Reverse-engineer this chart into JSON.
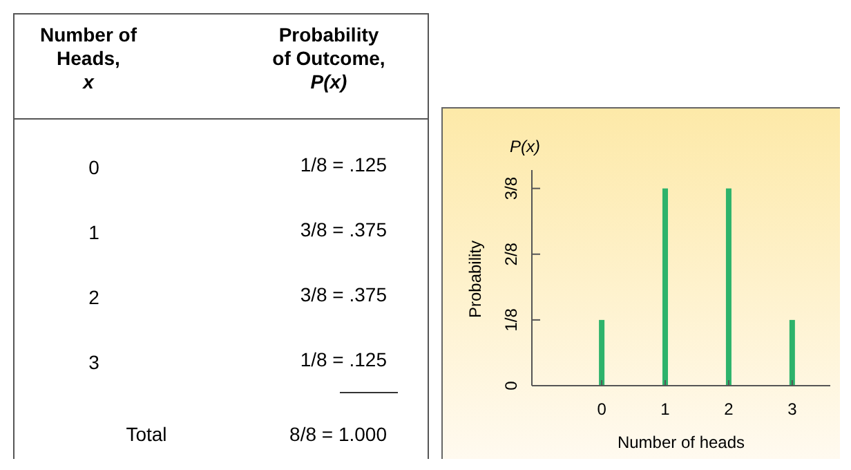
{
  "chart_data": {
    "type": "bar",
    "xlabel": "Number of heads",
    "ylabel": "Probability",
    "x": [
      0,
      1,
      2,
      3
    ],
    "values": [
      0.125,
      0.375,
      0.375,
      0.125
    ],
    "color": "#2db36b",
    "xlim": [
      -1.1,
      3.6
    ],
    "xticks": [
      0,
      1,
      2,
      3
    ],
    "ylim": [
      0,
      0.41
    ],
    "yticks": [
      0,
      {
        "value": 0.125,
        "label": "1/8"
      },
      {
        "value": 0.25,
        "label": "2/8"
      },
      {
        "value": 0.375,
        "label": "3/8"
      }
    ],
    "grid": false,
    "annotations": [
      "Number of\nHeads,\nx",
      "Probability\nof Outcome,\nP(x)",
      "Total",
      "8/8 = 1.000",
      "P(x)",
      "0",
      "1",
      "2",
      "3",
      "1/8 = .125",
      "3/8 = .375",
      "3/8 = .375",
      "1/8 = .125"
    ]
  }
}
